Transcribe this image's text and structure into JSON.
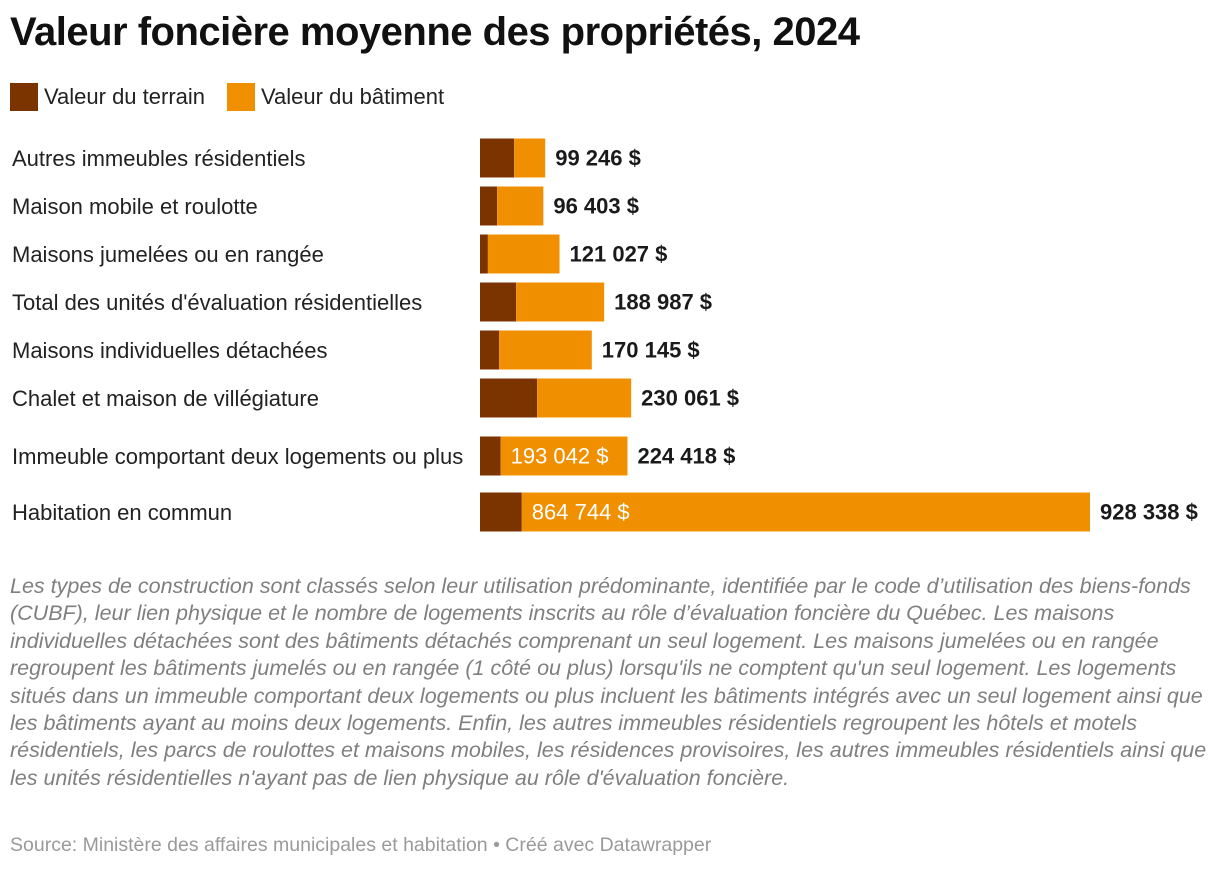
{
  "chart_data": {
    "type": "bar",
    "orientation": "horizontal",
    "stacked": true,
    "title": "Valeur foncière moyenne des propriétés, 2024",
    "categories": [
      "Autres immeubles résidentiels",
      "Maison mobile et roulotte",
      "Maisons jumelées ou en rangée",
      "Total des unités d'évaluation résidentielles",
      "Maisons individuelles détachées",
      "Chalet et maison de villégiature",
      "Immeuble comportant deux logements ou plus",
      "Habitation en commun"
    ],
    "series": [
      {
        "name": "Valeur du terrain",
        "color": "#7b3300",
        "values": [
          52000,
          26000,
          12000,
          55000,
          29000,
          87000,
          31376,
          63594
        ]
      },
      {
        "name": "Valeur du bâtiment",
        "color": "#f09000",
        "values": [
          47246,
          70403,
          109027,
          133987,
          141145,
          143061,
          193042,
          864744
        ]
      }
    ],
    "total_labels": [
      "99 246 $",
      "96 403 $",
      "121 027 $",
      "188 987 $",
      "170 145 $",
      "230 061 $",
      "224 418 $",
      "928 338 $"
    ],
    "segment_labels": [
      "",
      "",
      "",
      "",
      "",
      "",
      "193 042 $",
      "864 744 $"
    ],
    "xlim": [
      0,
      928338
    ],
    "legend_position": "top-left",
    "grid": false
  },
  "notes": "Les types de construction sont classés selon leur utilisation prédominante, identifiée par le code d’utilisation des biens-fonds (CUBF), leur lien physique et le nombre de logements inscrits au rôle d’évaluation foncière du Québec. Les maisons individuelles détachées sont des bâtiments détachés comprenant un seul logement. Les maisons jumelées ou en rangée regroupent les bâtiments jumelés ou en rangée (1 côté ou plus) lorsqu'ils ne comptent qu'un seul logement. Les logements situés dans un immeuble comportant deux logements ou plus incluent les bâtiments intégrés avec un seul logement ainsi que les bâtiments ayant au moins deux logements. Enfin, les autres immeubles résidentiels regroupent les hôtels et motels résidentiels, les parcs de roulottes et maisons mobiles, les résidences provisoires, les autres immeubles résidentiels ainsi que les unités résidentielles n'ayant pas de lien physique au rôle d'évaluation foncière.",
  "source": "Source: Ministère des affaires municipales et habitation • Créé avec Datawrapper"
}
